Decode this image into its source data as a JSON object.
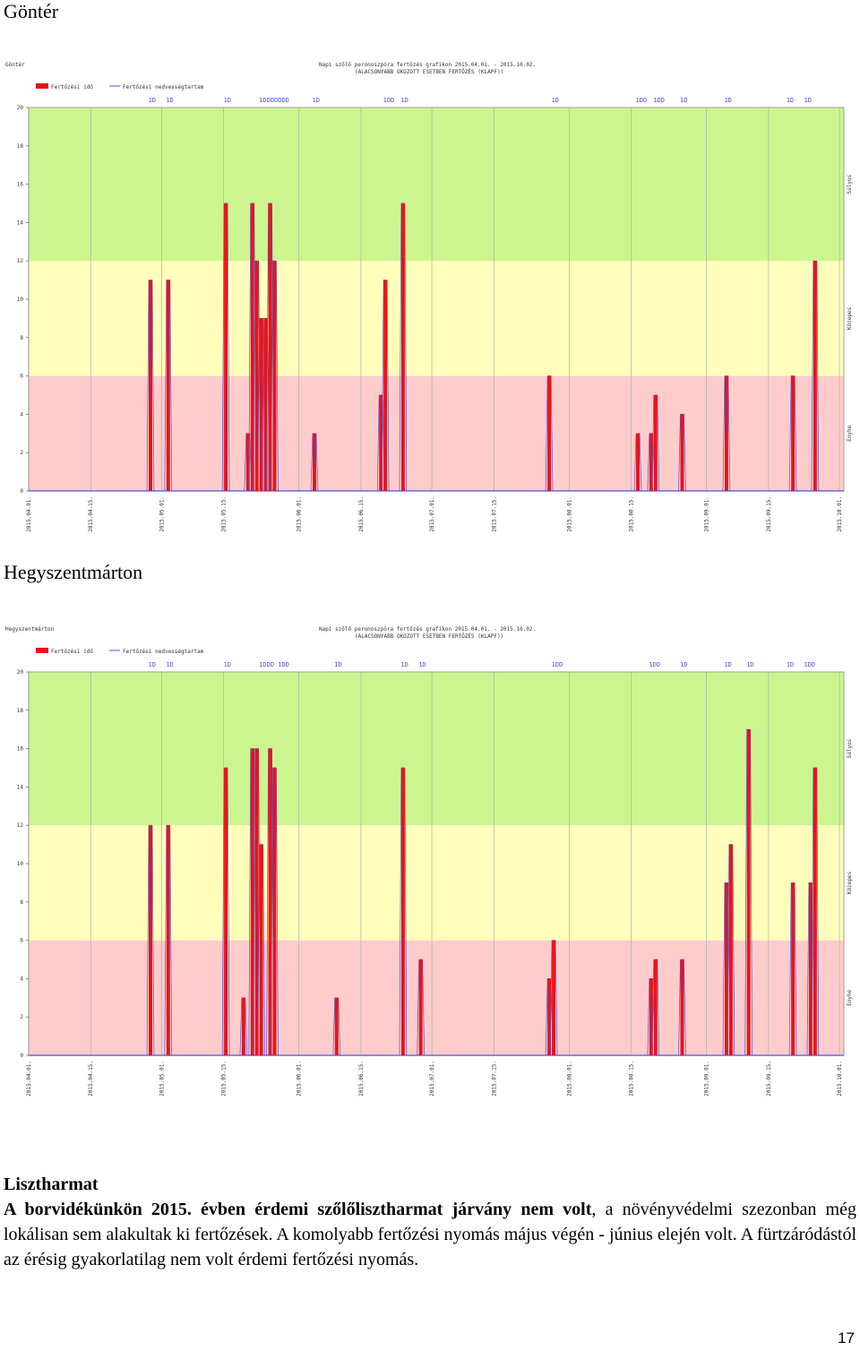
{
  "charts": [
    {
      "title": "Göntér"
    },
    {
      "title": "Hegyszentmárton"
    }
  ],
  "chart_data": [
    {
      "type": "bar",
      "corner_label": "Göntér",
      "header_line1": "Napi szőlő peronoszpóra fertőzés grafikon 2015.04.01. - 2015.10.02.",
      "header_line2": "(ALACSONYABB OKOZOTT ESETBEN FERTŐZÉS (KLAPF))",
      "legend": [
        "Fertőzési idő",
        "Fertőzési nedvességtartam"
      ],
      "right_labels": [
        "Súlyos",
        "Közepes",
        "Enyhe"
      ],
      "bands": [
        {
          "from": 0,
          "to": 6,
          "color": "#ffcccc"
        },
        {
          "from": 6,
          "to": 12,
          "color": "#ffffbb"
        },
        {
          "from": 12,
          "to": 20,
          "color": "#ccf58f"
        }
      ],
      "bar_color": "#e8141a",
      "ylim": [
        0,
        20
      ],
      "yticks": [
        0,
        2,
        4,
        6,
        8,
        10,
        12,
        14,
        16,
        18,
        20
      ],
      "xlim": [
        0,
        184
      ],
      "xticks": [
        {
          "pos": 0,
          "label": "2015.04.01."
        },
        {
          "pos": 14,
          "label": "2015.04.15."
        },
        {
          "pos": 30,
          "label": "2015.05.01."
        },
        {
          "pos": 44,
          "label": "2015.05.15."
        },
        {
          "pos": 61,
          "label": "2015.06.01."
        },
        {
          "pos": 75,
          "label": "2015.06.15."
        },
        {
          "pos": 91,
          "label": "2015.07.01."
        },
        {
          "pos": 105,
          "label": "2015.07.15."
        },
        {
          "pos": 122,
          "label": "2015.08.01."
        },
        {
          "pos": 136,
          "label": "2015.08.15."
        },
        {
          "pos": 153,
          "label": "2015.09.01."
        },
        {
          "pos": 167,
          "label": "2015.09.15."
        },
        {
          "pos": 183,
          "label": "2015.10.01."
        }
      ],
      "marks": [
        {
          "x": 27,
          "text": "1D"
        },
        {
          "x": 31,
          "text": "1D"
        },
        {
          "x": 44,
          "text": "1D"
        },
        {
          "x": 52,
          "text": "1DDDDDDD"
        },
        {
          "x": 64,
          "text": "1D"
        },
        {
          "x": 80,
          "text": "1DD"
        },
        {
          "x": 84,
          "text": "1D"
        },
        {
          "x": 118,
          "text": "1D"
        },
        {
          "x": 137,
          "text": "1DD"
        },
        {
          "x": 141,
          "text": "1DD"
        },
        {
          "x": 147,
          "text": "1D"
        },
        {
          "x": 157,
          "text": "1D"
        },
        {
          "x": 171,
          "text": "1D"
        },
        {
          "x": 175,
          "text": "1D"
        }
      ],
      "series": [
        {
          "name": "Fertőzési idő",
          "points": [
            [
              27,
              11
            ],
            [
              31,
              11
            ],
            [
              44,
              15
            ],
            [
              49,
              3
            ],
            [
              50,
              15
            ],
            [
              51,
              12
            ],
            [
              52,
              9
            ],
            [
              53,
              9
            ],
            [
              54,
              15
            ],
            [
              55,
              12
            ],
            [
              64,
              3
            ],
            [
              79,
              5
            ],
            [
              80,
              11
            ],
            [
              84,
              15
            ],
            [
              117,
              6
            ],
            [
              137,
              3
            ],
            [
              140,
              3
            ],
            [
              141,
              5
            ],
            [
              147,
              4
            ],
            [
              157,
              6
            ],
            [
              172,
              6
            ],
            [
              177,
              12
            ]
          ]
        }
      ]
    },
    {
      "type": "bar",
      "corner_label": "Hegyszentmárton",
      "header_line1": "Napi szőlő peronoszpóra fertőzés grafikon 2015.04.01. - 2015.10.02.",
      "header_line2": "(ALACSONYABB OKOZOTT ESETBEN FERTŐZÉS (KLAPF))",
      "legend": [
        "Fertőzési idő",
        "Fertőzési nedvességtartam"
      ],
      "right_labels": [
        "Súlyos",
        "Közepes",
        "Enyhe"
      ],
      "bands": [
        {
          "from": 0,
          "to": 6,
          "color": "#ffcccc"
        },
        {
          "from": 6,
          "to": 12,
          "color": "#ffffbb"
        },
        {
          "from": 12,
          "to": 20,
          "color": "#ccf58f"
        }
      ],
      "bar_color": "#e8141a",
      "ylim": [
        0,
        20
      ],
      "yticks": [
        0,
        2,
        4,
        6,
        8,
        10,
        12,
        14,
        16,
        18,
        20
      ],
      "xlim": [
        0,
        184
      ],
      "xticks": [
        {
          "pos": 0,
          "label": "2015.04.01."
        },
        {
          "pos": 14,
          "label": "2015.04.15."
        },
        {
          "pos": 30,
          "label": "2015.05.01."
        },
        {
          "pos": 44,
          "label": "2015.05.15."
        },
        {
          "pos": 61,
          "label": "2015.06.01."
        },
        {
          "pos": 75,
          "label": "2015.06.15."
        },
        {
          "pos": 91,
          "label": "2015.07.01."
        },
        {
          "pos": 105,
          "label": "2015.07.15."
        },
        {
          "pos": 122,
          "label": "2015.08.01."
        },
        {
          "pos": 136,
          "label": "2015.08.15."
        },
        {
          "pos": 153,
          "label": "2015.09.01."
        },
        {
          "pos": 167,
          "label": "2015.09.15."
        },
        {
          "pos": 183,
          "label": "2015.10.01."
        }
      ],
      "marks": [
        {
          "x": 27,
          "text": "1D"
        },
        {
          "x": 31,
          "text": "1D"
        },
        {
          "x": 44,
          "text": "1D"
        },
        {
          "x": 52,
          "text": "1DDD 1DD"
        },
        {
          "x": 69,
          "text": "1D"
        },
        {
          "x": 84,
          "text": "1D"
        },
        {
          "x": 88,
          "text": "1D"
        },
        {
          "x": 118,
          "text": "1DD"
        },
        {
          "x": 140,
          "text": "1DD"
        },
        {
          "x": 147,
          "text": "1D"
        },
        {
          "x": 157,
          "text": "1D"
        },
        {
          "x": 162,
          "text": "1D"
        },
        {
          "x": 171,
          "text": "1D"
        },
        {
          "x": 175,
          "text": "1DD"
        }
      ],
      "series": [
        {
          "name": "Fertőzési idő",
          "points": [
            [
              27,
              12
            ],
            [
              31,
              12
            ],
            [
              44,
              15
            ],
            [
              48,
              3
            ],
            [
              50,
              16
            ],
            [
              51,
              16
            ],
            [
              52,
              11
            ],
            [
              54,
              16
            ],
            [
              55,
              15
            ],
            [
              69,
              3
            ],
            [
              84,
              15
            ],
            [
              88,
              5
            ],
            [
              117,
              4
            ],
            [
              118,
              6
            ],
            [
              140,
              4
            ],
            [
              141,
              5
            ],
            [
              147,
              5
            ],
            [
              157,
              9
            ],
            [
              158,
              11
            ],
            [
              162,
              17
            ],
            [
              172,
              9
            ],
            [
              176,
              9
            ],
            [
              177,
              15
            ]
          ]
        }
      ]
    }
  ],
  "text": {
    "heading": "Lisztharmat",
    "p1_bold": "A borvidékünkön 2015. évben érdemi szőlőlisztharmat járvány nem volt",
    "p1_rest": ", a növényvédelmi szezonban még lokálisan sem alakultak ki fertőzések. A komolyabb fertőzési nyomás május végén - június elején volt. A fürtzáródástól az érésig gyakorlatilag nem volt érdemi fertőzési nyomás."
  },
  "page_number": "17"
}
